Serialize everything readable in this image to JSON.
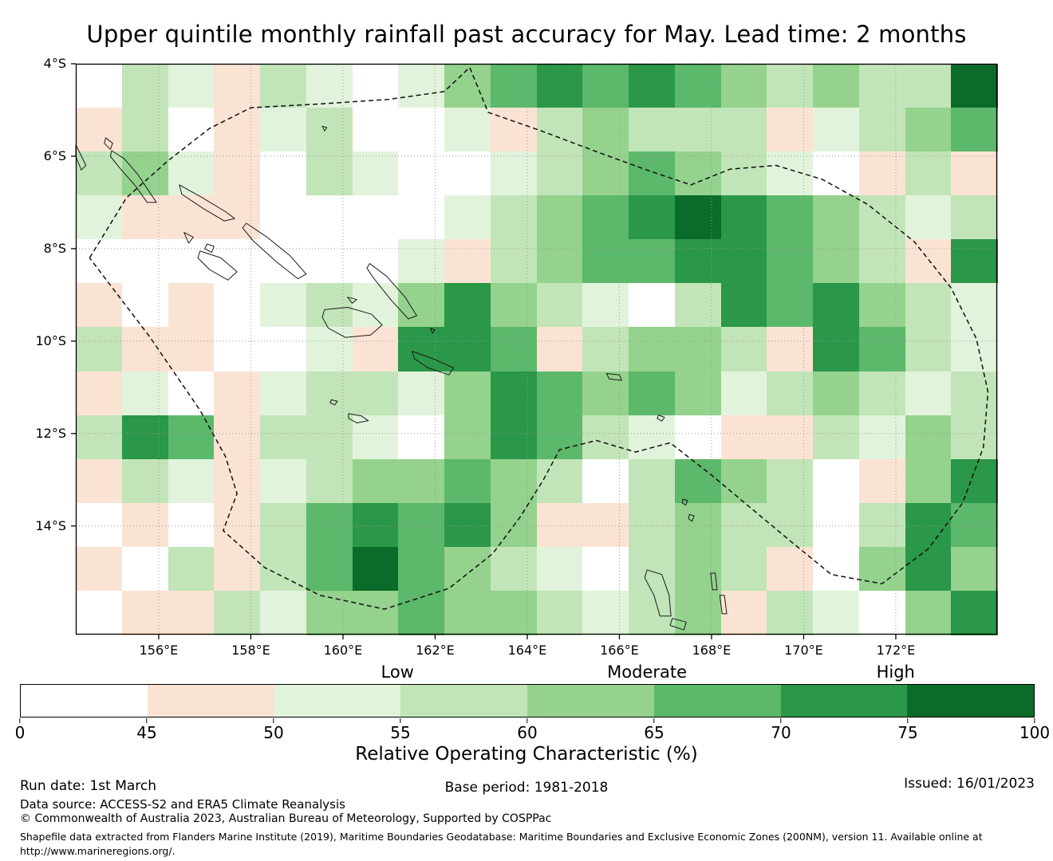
{
  "title": "Upper quintile monthly rainfall past accuracy for May. Lead time: 2 months",
  "chart_data": {
    "type": "heatmap",
    "title": "Upper quintile monthly rainfall past accuracy for May. Lead time: 2 months",
    "colorbar_label": "Relative Operating Characteristic (%)",
    "lon_range": [
      154.2,
      174.2
    ],
    "lat_range": [
      4.0,
      16.35
    ],
    "grid": {
      "lon_start": 154.2,
      "lon_step": 1.0,
      "lat_start": 4.0,
      "lat_step": 0.95,
      "ncols": 20,
      "nrows": 13
    },
    "lat_ticks": [
      {
        "value": 4,
        "label": "4°S"
      },
      {
        "value": 6,
        "label": "6°S"
      },
      {
        "value": 8,
        "label": "8°S"
      },
      {
        "value": 10,
        "label": "10°S"
      },
      {
        "value": 12,
        "label": "12°S"
      },
      {
        "value": 14,
        "label": "14°S"
      }
    ],
    "lon_ticks": [
      {
        "value": 156,
        "label": "156°E"
      },
      {
        "value": 158,
        "label": "158°E"
      },
      {
        "value": 160,
        "label": "160°E"
      },
      {
        "value": 162,
        "label": "162°E"
      },
      {
        "value": 164,
        "label": "164°E"
      },
      {
        "value": 166,
        "label": "166°E"
      },
      {
        "value": 168,
        "label": "168°E"
      },
      {
        "value": 170,
        "label": "170°E"
      },
      {
        "value": 172,
        "label": "172°E"
      }
    ],
    "grid_lons": [
      156,
      158,
      160,
      162,
      164,
      166,
      168,
      170,
      172
    ],
    "grid_lats": [
      4,
      6,
      8,
      10,
      12,
      14
    ],
    "bins": [
      {
        "range": [
          0,
          45
        ],
        "max": 45,
        "color": "#ffffff"
      },
      {
        "range": [
          45,
          50
        ],
        "max": 50,
        "color": "#fbe3d4"
      },
      {
        "range": [
          50,
          55
        ],
        "max": 55,
        "color": "#e2f3dc"
      },
      {
        "range": [
          55,
          60
        ],
        "max": 60,
        "color": "#c1e5b8"
      },
      {
        "range": [
          60,
          65
        ],
        "max": 65,
        "color": "#94d28d"
      },
      {
        "range": [
          65,
          70
        ],
        "max": 70,
        "color": "#5cb86a"
      },
      {
        "range": [
          70,
          75
        ],
        "max": 75,
        "color": "#2b9748"
      },
      {
        "range": [
          75,
          100
        ],
        "max": 100,
        "color": "#0b6b2b"
      }
    ],
    "colorbar_ticks": [
      "0",
      "45",
      "50",
      "55",
      "60",
      "65",
      "70",
      "75",
      "100"
    ],
    "zones": [
      {
        "label": "Low",
        "pct": 37.2
      },
      {
        "label": "Moderate",
        "pct": 61.8
      },
      {
        "label": "High",
        "pct": 86.3
      }
    ],
    "values": [
      [
        22,
        57.5,
        52.5,
        47.5,
        57.5,
        52.5,
        22,
        52.5,
        62.5,
        67.5,
        72.5,
        67.5,
        72.5,
        67.5,
        62.5,
        57.5,
        62.5,
        57.5,
        57.5,
        87.5
      ],
      [
        47.5,
        57.5,
        22,
        47.5,
        52.5,
        57.5,
        22,
        22,
        52.5,
        47.5,
        57.5,
        62.5,
        57.5,
        57.5,
        57.5,
        47.5,
        52.5,
        57.5,
        62.5,
        67.5
      ],
      [
        57.5,
        62.5,
        52.5,
        47.5,
        22,
        57.5,
        52.5,
        22,
        22,
        52.5,
        57.5,
        62.5,
        67.5,
        62.5,
        57.5,
        52.5,
        22,
        47.5,
        57.5,
        47.5
      ],
      [
        52.5,
        47.5,
        47.5,
        47.5,
        22,
        22,
        22,
        22,
        52.5,
        57.5,
        62.5,
        67.5,
        72.5,
        87.5,
        72.5,
        67.5,
        62.5,
        57.5,
        52.5,
        57.5
      ],
      [
        22,
        22,
        22,
        22,
        22,
        22,
        22,
        52.5,
        47.5,
        57.5,
        62.5,
        67.5,
        67.5,
        72.5,
        72.5,
        67.5,
        62.5,
        57.5,
        47.5,
        72.5
      ],
      [
        47.5,
        22,
        47.5,
        22,
        52.5,
        57.5,
        52.5,
        62.5,
        72.5,
        62.5,
        57.5,
        52.5,
        22,
        57.5,
        72.5,
        67.5,
        72.5,
        62.5,
        57.5,
        52.5
      ],
      [
        57.5,
        47.5,
        47.5,
        22,
        22,
        52.5,
        47.5,
        72.5,
        72.5,
        67.5,
        47.5,
        57.5,
        62.5,
        62.5,
        57.5,
        47.5,
        72.5,
        67.5,
        57.5,
        52.5
      ],
      [
        47.5,
        52.5,
        22,
        47.5,
        52.5,
        57.5,
        57.5,
        52.5,
        62.5,
        72.5,
        67.5,
        62.5,
        67.5,
        62.5,
        52.5,
        57.5,
        62.5,
        57.5,
        52.5,
        57.5
      ],
      [
        57.5,
        72.5,
        67.5,
        47.5,
        57.5,
        57.5,
        52.5,
        22,
        62.5,
        72.5,
        67.5,
        57.5,
        52.5,
        22,
        47.5,
        47.5,
        57.5,
        52.5,
        62.5,
        57.5
      ],
      [
        47.5,
        57.5,
        52.5,
        47.5,
        52.5,
        57.5,
        62.5,
        62.5,
        67.5,
        62.5,
        57.5,
        22,
        57.5,
        67.5,
        62.5,
        57.5,
        22,
        47.5,
        62.5,
        72.5
      ],
      [
        22,
        47.5,
        22,
        47.5,
        57.5,
        67.5,
        72.5,
        67.5,
        72.5,
        62.5,
        47.5,
        47.5,
        57.5,
        62.5,
        57.5,
        57.5,
        22,
        57.5,
        72.5,
        67.5
      ],
      [
        47.5,
        22,
        57.5,
        47.5,
        57.5,
        67.5,
        87.5,
        67.5,
        62.5,
        57.5,
        52.5,
        22,
        57.5,
        62.5,
        57.5,
        47.5,
        22,
        62.5,
        72.5,
        62.5
      ],
      [
        22,
        47.5,
        47.5,
        57.5,
        52.5,
        62.5,
        62.5,
        67.5,
        62.5,
        62.5,
        57.5,
        52.5,
        57.5,
        62.5,
        47.5,
        57.5,
        52.5,
        22,
        62.5,
        72.5
      ]
    ],
    "eez_boundary": [
      [
        154.5,
        8.2
      ],
      [
        155.3,
        6.9
      ],
      [
        156.2,
        6.1
      ],
      [
        157.1,
        5.4
      ],
      [
        158.0,
        4.95
      ],
      [
        159.5,
        4.87
      ],
      [
        161.0,
        4.77
      ],
      [
        162.2,
        4.6
      ],
      [
        162.75,
        4.08
      ],
      [
        163.15,
        5.05
      ],
      [
        164.3,
        5.45
      ],
      [
        165.5,
        5.9
      ],
      [
        166.6,
        6.3
      ],
      [
        167.55,
        6.62
      ],
      [
        168.4,
        6.28
      ],
      [
        169.4,
        6.2
      ],
      [
        170.4,
        6.5
      ],
      [
        171.4,
        7.05
      ],
      [
        172.4,
        7.85
      ],
      [
        173.2,
        8.85
      ],
      [
        173.75,
        9.95
      ],
      [
        174.0,
        11.1
      ],
      [
        173.9,
        12.3
      ],
      [
        173.45,
        13.5
      ],
      [
        172.7,
        14.5
      ],
      [
        171.7,
        15.25
      ],
      [
        170.6,
        15.05
      ],
      [
        169.8,
        14.4
      ],
      [
        168.9,
        13.65
      ],
      [
        168.0,
        12.9
      ],
      [
        167.1,
        12.2
      ],
      [
        166.35,
        12.4
      ],
      [
        165.5,
        12.15
      ],
      [
        164.7,
        12.35
      ],
      [
        164.35,
        13.0
      ],
      [
        163.85,
        13.8
      ],
      [
        163.25,
        14.6
      ],
      [
        162.3,
        15.35
      ],
      [
        160.9,
        15.8
      ],
      [
        159.5,
        15.5
      ],
      [
        158.3,
        14.9
      ],
      [
        157.4,
        14.1
      ],
      [
        157.7,
        13.3
      ],
      [
        157.45,
        12.5
      ],
      [
        156.9,
        11.5
      ],
      [
        155.8,
        9.9
      ],
      [
        154.5,
        8.2
      ]
    ],
    "coastlines": [
      [
        [
          154.98,
          5.88
        ],
        [
          155.25,
          6.05
        ],
        [
          155.55,
          6.4
        ],
        [
          155.85,
          6.85
        ],
        [
          155.95,
          7.0
        ],
        [
          155.75,
          7.0
        ],
        [
          155.5,
          6.65
        ],
        [
          155.15,
          6.25
        ],
        [
          154.95,
          6.0
        ]
      ],
      [
        [
          154.85,
          5.6
        ],
        [
          155.0,
          5.72
        ],
        [
          154.95,
          5.85
        ],
        [
          154.82,
          5.72
        ]
      ],
      [
        [
          154.2,
          5.75
        ],
        [
          154.42,
          6.2
        ],
        [
          154.32,
          6.3
        ],
        [
          154.2,
          6.0
        ]
      ],
      [
        [
          156.45,
          6.62
        ],
        [
          156.95,
          6.9
        ],
        [
          157.45,
          7.2
        ],
        [
          157.65,
          7.35
        ],
        [
          157.42,
          7.4
        ],
        [
          156.95,
          7.12
        ],
        [
          156.5,
          6.82
        ]
      ],
      [
        [
          157.9,
          7.45
        ],
        [
          158.35,
          7.75
        ],
        [
          158.85,
          8.15
        ],
        [
          159.2,
          8.55
        ],
        [
          159.02,
          8.65
        ],
        [
          158.55,
          8.28
        ],
        [
          158.05,
          7.83
        ],
        [
          157.82,
          7.55
        ]
      ],
      [
        [
          156.9,
          8.05
        ],
        [
          157.35,
          8.2
        ],
        [
          157.7,
          8.5
        ],
        [
          157.5,
          8.68
        ],
        [
          157.1,
          8.45
        ],
        [
          156.85,
          8.2
        ]
      ],
      [
        [
          157.05,
          7.9
        ],
        [
          157.2,
          7.95
        ],
        [
          157.15,
          8.08
        ],
        [
          157.0,
          8.0
        ]
      ],
      [
        [
          156.55,
          7.65
        ],
        [
          156.75,
          7.75
        ],
        [
          156.65,
          7.88
        ]
      ],
      [
        [
          160.58,
          8.32
        ],
        [
          160.95,
          8.6
        ],
        [
          161.35,
          9.05
        ],
        [
          161.6,
          9.45
        ],
        [
          161.42,
          9.52
        ],
        [
          161.05,
          9.12
        ],
        [
          160.65,
          8.62
        ],
        [
          160.52,
          8.42
        ]
      ],
      [
        [
          159.6,
          9.32
        ],
        [
          160.1,
          9.27
        ],
        [
          160.62,
          9.42
        ],
        [
          160.85,
          9.65
        ],
        [
          160.6,
          9.87
        ],
        [
          160.05,
          9.92
        ],
        [
          159.68,
          9.72
        ],
        [
          159.55,
          9.48
        ]
      ],
      [
        [
          160.1,
          9.05
        ],
        [
          160.3,
          9.1
        ],
        [
          160.2,
          9.18
        ]
      ],
      [
        [
          161.5,
          10.22
        ],
        [
          161.95,
          10.38
        ],
        [
          162.4,
          10.58
        ],
        [
          162.3,
          10.73
        ],
        [
          161.85,
          10.58
        ],
        [
          161.55,
          10.38
        ]
      ],
      [
        [
          161.9,
          9.72
        ],
        [
          162.0,
          9.76
        ],
        [
          161.94,
          9.83
        ]
      ],
      [
        [
          160.12,
          11.57
        ],
        [
          160.4,
          11.62
        ],
        [
          160.55,
          11.72
        ],
        [
          160.3,
          11.77
        ],
        [
          160.12,
          11.67
        ]
      ],
      [
        [
          159.75,
          11.27
        ],
        [
          159.88,
          11.3
        ],
        [
          159.82,
          11.38
        ],
        [
          159.72,
          11.33
        ]
      ],
      [
        [
          159.55,
          5.35
        ],
        [
          159.65,
          5.38
        ],
        [
          159.6,
          5.45
        ]
      ],
      [
        [
          165.72,
          10.7
        ],
        [
          166.0,
          10.73
        ],
        [
          166.05,
          10.85
        ],
        [
          165.78,
          10.82
        ]
      ],
      [
        [
          166.85,
          11.6
        ],
        [
          166.98,
          11.65
        ],
        [
          166.92,
          11.73
        ],
        [
          166.82,
          11.67
        ]
      ],
      [
        [
          167.38,
          13.42
        ],
        [
          167.48,
          13.45
        ],
        [
          167.44,
          13.55
        ],
        [
          167.36,
          13.5
        ]
      ],
      [
        [
          167.52,
          13.75
        ],
        [
          167.62,
          13.78
        ],
        [
          167.58,
          13.9
        ],
        [
          167.5,
          13.84
        ]
      ],
      [
        [
          166.6,
          14.95
        ],
        [
          166.92,
          15.05
        ],
        [
          167.08,
          15.5
        ],
        [
          167.12,
          15.95
        ],
        [
          166.88,
          15.95
        ],
        [
          166.75,
          15.5
        ],
        [
          166.55,
          15.12
        ]
      ],
      [
        [
          167.15,
          16.0
        ],
        [
          167.45,
          16.08
        ],
        [
          167.4,
          16.25
        ],
        [
          167.1,
          16.15
        ]
      ],
      [
        [
          167.98,
          15.02
        ],
        [
          168.08,
          15.02
        ],
        [
          168.12,
          15.38
        ],
        [
          168.02,
          15.38
        ]
      ],
      [
        [
          168.18,
          15.5
        ],
        [
          168.28,
          15.5
        ],
        [
          168.33,
          15.9
        ],
        [
          168.23,
          15.9
        ]
      ]
    ]
  },
  "footer": {
    "run_date": "Run date: 1st March",
    "base_period": "Base period: 1981-2018",
    "issued": "Issued: 16/01/2023",
    "data_source": "Data source: ACCESS-S2 and ERA5 Climate Reanalysis",
    "copyright": "© Commonwealth of Australia 2023, Australian Bureau of Meteorology, Supported by COSPPac",
    "shapefile_line1": "Shapefile data extracted from Flanders Marine Institute (2019), Maritime Boundaries Geodatabase: Maritime Boundaries and Exclusive Economic Zones (200NM), version 11. Available online at",
    "shapefile_line2": "http://www.marineregions.org/."
  }
}
